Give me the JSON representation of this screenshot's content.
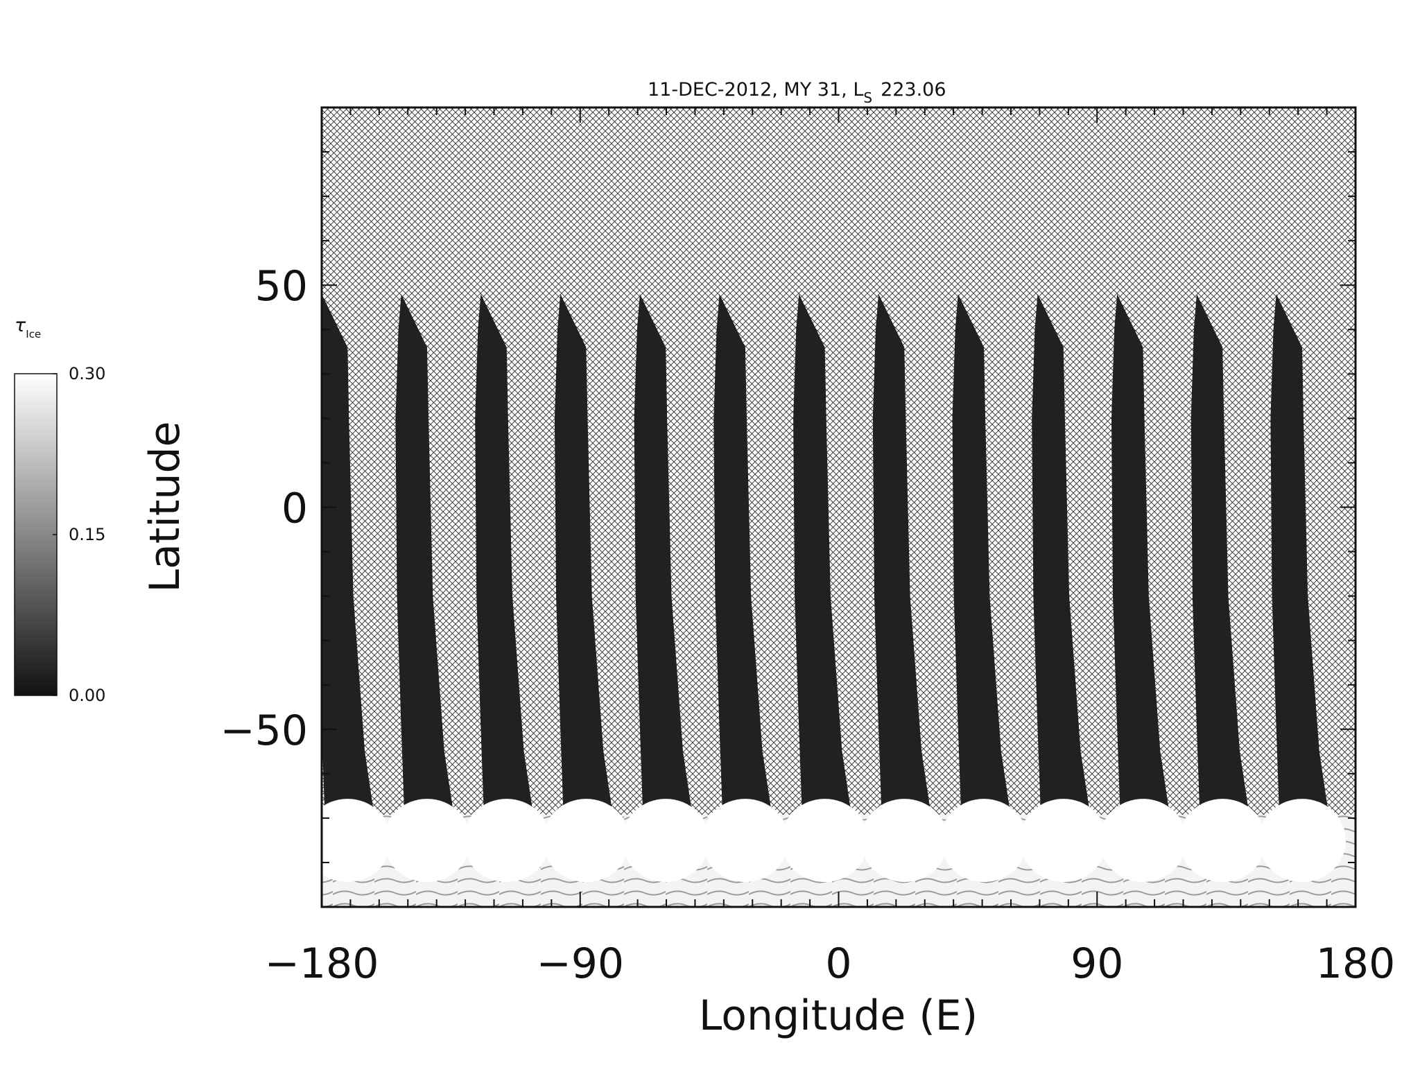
{
  "chart_data": {
    "type": "heatmap",
    "title": "11-DEC-2012, MY 31,  L",
    "title_subscript": "S",
    "title_value": "223.06",
    "xlabel": "Longitude (E)",
    "ylabel": "Latitude",
    "xlim": [
      -180,
      180
    ],
    "ylim": [
      -90,
      90
    ],
    "x_ticks": [
      -180,
      -90,
      0,
      90,
      180
    ],
    "x_tick_labels": [
      "−180",
      "−90",
      "0",
      "90",
      "180"
    ],
    "y_ticks": [
      -50,
      0,
      50
    ],
    "y_tick_labels": [
      "−50",
      "0",
      "50"
    ],
    "x_minor_step": 10,
    "y_minor_step": 10,
    "missing_data": "cross-hatched",
    "colormap": "grayscale",
    "colorbar": {
      "label": "τ",
      "label_subscript": "Ice",
      "min": 0.0,
      "max": 0.3,
      "ticks": [
        0.0,
        0.15,
        0.3
      ],
      "tick_labels": [
        "0.00",
        "0.15",
        "0.30"
      ],
      "color_low": "#111111",
      "color_high": "#ffffff"
    },
    "orbit_swaths": {
      "count": 13,
      "lon_spacing_deg": 27.7,
      "first_top_lon": -180,
      "top_lat": 48,
      "typical_ice_opacity": 0.02,
      "polar_region_lat": -68,
      "polar_ice_opacity": 0.3
    }
  }
}
